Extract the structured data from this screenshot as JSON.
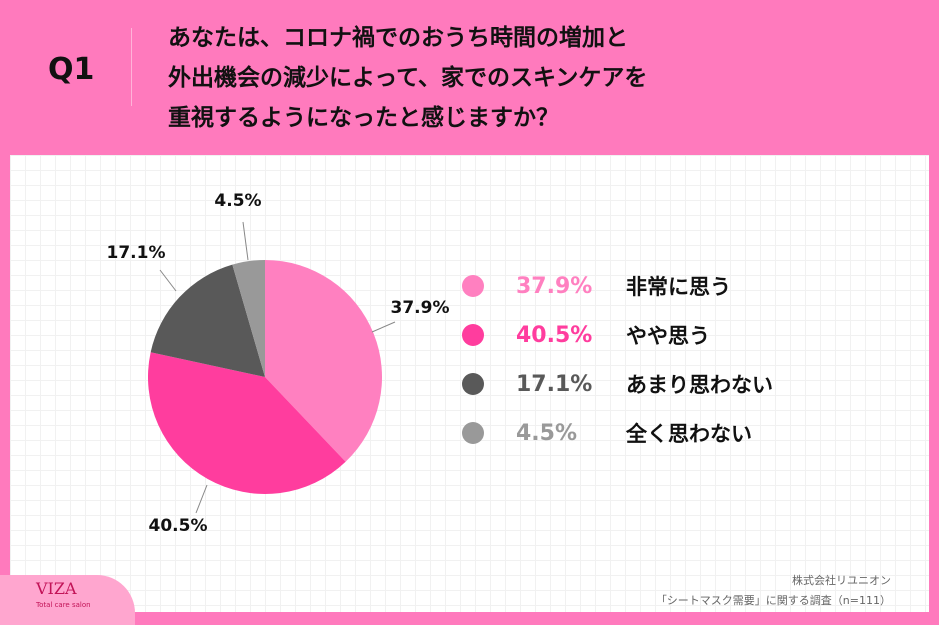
{
  "header": {
    "q": "Q1",
    "lines": [
      "あなたは、コロナ禍でのおうち時間の増加と",
      "外出機会の減少によって、家でのスキンケアを",
      "重視するようになったと感じますか？"
    ]
  },
  "chart_data": {
    "type": "pie",
    "start": "top",
    "direction": "clockwise",
    "slices": [
      {
        "label": "非常に思う",
        "value": 37.9,
        "text": "37.9%",
        "color": "#ff80c0"
      },
      {
        "label": "やや思う",
        "value": 40.5,
        "text": "40.5%",
        "color": "#ff3d9e"
      },
      {
        "label": "あまり思わない",
        "value": 17.1,
        "text": "17.1%",
        "color": "#595959"
      },
      {
        "label": "全く思わない",
        "value": 4.5,
        "text": "4.5%",
        "color": "#999999"
      }
    ]
  },
  "footer": {
    "company": "株式会社リユニオン",
    "survey": "「シートマスク需要」に関する調査（n=111）"
  },
  "logo": {
    "name": "VIZA",
    "tagline": "Total care salon"
  }
}
